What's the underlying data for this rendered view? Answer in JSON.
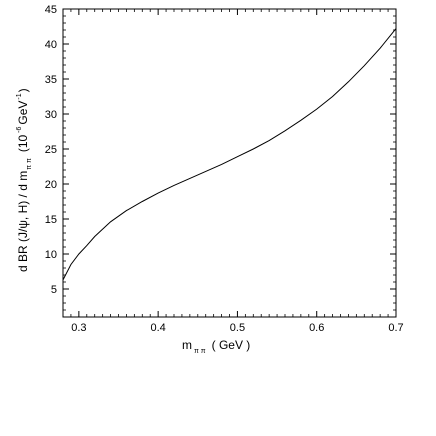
{
  "chart_data": {
    "type": "line",
    "title": "",
    "xlabel": {
      "main": "m",
      "sub": "π π",
      "unit": "( GeV )"
    },
    "ylabel": {
      "part1": "d BR (J/ψ, H) / d m",
      "sub": "π π",
      "part2": "(10",
      "exp1": "-6",
      "part3": "GeV",
      "exp2": "-1",
      "part4": ")"
    },
    "xlim": [
      0.28,
      0.7
    ],
    "ylim": [
      1,
      45
    ],
    "x_ticks": [
      "0.3",
      "0.4",
      "0.5",
      "0.6",
      "0.7"
    ],
    "x_tick_values": [
      0.3,
      0.4,
      0.5,
      0.6,
      0.7
    ],
    "y_ticks": [
      "5",
      "10",
      "15",
      "20",
      "25",
      "30",
      "35",
      "40",
      "45"
    ],
    "y_tick_values": [
      5,
      10,
      15,
      20,
      25,
      30,
      35,
      40,
      45
    ],
    "grid": false,
    "series": [
      {
        "x": [
          0.28,
          0.29,
          0.3,
          0.31,
          0.32,
          0.34,
          0.36,
          0.38,
          0.4,
          0.42,
          0.44,
          0.46,
          0.48,
          0.5,
          0.52,
          0.54,
          0.56,
          0.58,
          0.6,
          0.62,
          0.64,
          0.66,
          0.68,
          0.7
        ],
        "values": [
          6.3,
          8.5,
          10.0,
          11.2,
          12.5,
          14.6,
          16.2,
          17.5,
          18.7,
          19.8,
          20.8,
          21.8,
          22.8,
          23.9,
          25.0,
          26.2,
          27.6,
          29.1,
          30.7,
          32.5,
          34.6,
          36.9,
          39.4,
          42.2
        ]
      }
    ]
  }
}
